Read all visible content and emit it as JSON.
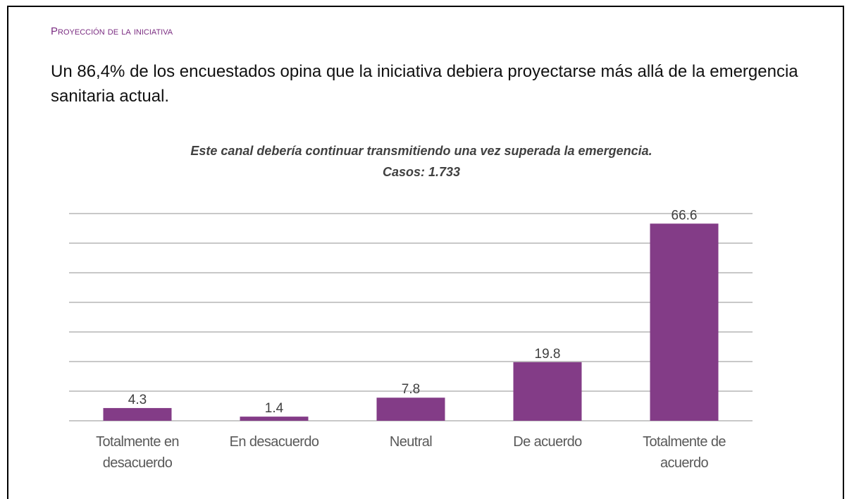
{
  "header": {
    "section": "Proyección de la iniciativa"
  },
  "body": {
    "text": "Un 86,4% de los encuestados opina que la iniciativa debiera proyectarse más allá de la emergencia sanitaria actual."
  },
  "chart_data": {
    "type": "bar",
    "title": "Este canal debería continuar transmitiendo una vez superada la emergencia.",
    "subtitle": "Casos: 1.733",
    "categories": [
      "Totalmente en desacuerdo",
      "En desacuerdo",
      "Neutral",
      "De acuerdo",
      "Totalmente de acuerdo"
    ],
    "values": [
      4.3,
      1.4,
      7.8,
      19.8,
      66.6
    ],
    "color": "#833c87",
    "ylim": [
      0,
      70
    ],
    "yticks": [
      0,
      10,
      20,
      30,
      40,
      50,
      60,
      70
    ],
    "grid": true
  }
}
